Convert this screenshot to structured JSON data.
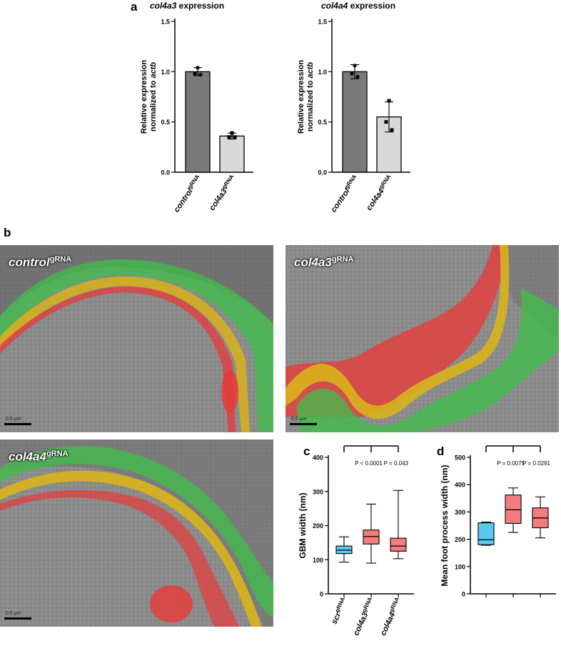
{
  "panels": {
    "a": "a",
    "b": "b",
    "c": "c",
    "d": "d"
  },
  "em_images": [
    {
      "label_main": "control",
      "label_sup": "gRNA",
      "scale": "0.5 µm"
    },
    {
      "label_main": "col4a3",
      "label_sup": "gRNA",
      "scale": "0.5 µm"
    },
    {
      "label_main": "col4a4",
      "label_sup": "gRNA",
      "scale": "0.5 µm"
    }
  ],
  "colors": {
    "dark_bar": "#7a7a7a",
    "light_bar": "#d9d9d9",
    "blue_box": "#5bc8f0",
    "red_box": "#f47c7c",
    "overlay_green": "#3dbf4a",
    "overlay_yellow": "#d8b21c",
    "overlay_red": "#e83a3a"
  },
  "chart_data": [
    {
      "type": "bar",
      "title_italic": "col4a3",
      "title_rest": " expression",
      "ylabel_line1": "Relative expression",
      "ylabel_line2_prefix": "normalized to ",
      "ylabel_line2_italic": "actb",
      "ylim": [
        0,
        1.5
      ],
      "yticks": [
        "0.0",
        "0.5",
        "1.0",
        "1.5"
      ],
      "categories": [
        {
          "main": "control",
          "sup": "gRNA"
        },
        {
          "main": "col4a3",
          "sup": "gRNA"
        }
      ],
      "values": [
        1.0,
        0.36
      ],
      "errors": [
        0.04,
        0.03
      ],
      "points": [
        [
          1.04,
          0.98,
          0.97
        ],
        [
          0.39,
          0.35,
          0.35
        ]
      ]
    },
    {
      "type": "bar",
      "title_italic": "col4a4",
      "title_rest": " expression",
      "ylabel_line1": "Relative expression",
      "ylabel_line2_prefix": "normalized to ",
      "ylabel_line2_italic": "actb",
      "ylim": [
        0,
        1.5
      ],
      "yticks": [
        "0.0",
        "0.5",
        "1.0",
        "1.5"
      ],
      "categories": [
        {
          "main": "control",
          "sup": "gRNA"
        },
        {
          "main": "col4a4",
          "sup": "gRNA"
        }
      ],
      "values": [
        1.0,
        0.55
      ],
      "errors": [
        0.07,
        0.15
      ],
      "points": [
        [
          1.06,
          0.98,
          0.95
        ],
        [
          0.71,
          0.5,
          0.42
        ]
      ]
    },
    {
      "type": "box",
      "ylabel": "GBM width (nm)",
      "ylim": [
        0,
        400
      ],
      "yticks": [
        "0",
        "100",
        "200",
        "300",
        "400"
      ],
      "categories": [
        {
          "main": "scr",
          "sup": "gRNA"
        },
        {
          "main": "col4a3",
          "sup": "gRNA"
        },
        {
          "main": "col4a4",
          "sup": "gRNA"
        }
      ],
      "boxes": [
        {
          "min": 93,
          "q1": 118,
          "median": 128,
          "q3": 140,
          "max": 167
        },
        {
          "min": 90,
          "q1": 146,
          "median": 168,
          "q3": 187,
          "max": 263
        },
        {
          "min": 103,
          "q1": 125,
          "median": 140,
          "q3": 163,
          "max": 303
        }
      ],
      "pvalues": [
        "P < 0.0001",
        "P = 0.043"
      ]
    },
    {
      "type": "box",
      "ylabel": "Mean foot process width (nm)",
      "ylim": [
        0,
        500
      ],
      "yticks": [
        "0",
        "100",
        "200",
        "300",
        "400",
        "500"
      ],
      "categories": [
        {
          "main": "",
          "sup": ""
        },
        {
          "main": "",
          "sup": ""
        },
        {
          "main": "",
          "sup": ""
        }
      ],
      "boxes": [
        {
          "min": 178,
          "q1": 180,
          "median": 198,
          "q3": 260,
          "max": 263
        },
        {
          "min": 225,
          "q1": 258,
          "median": 308,
          "q3": 362,
          "max": 388
        },
        {
          "min": 205,
          "q1": 242,
          "median": 278,
          "q3": 315,
          "max": 355
        }
      ],
      "pvalues": [
        "P = 0.0075",
        "P = 0.0291"
      ]
    }
  ]
}
